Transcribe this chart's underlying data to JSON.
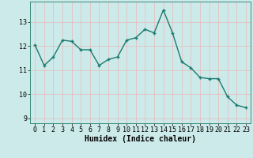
{
  "x": [
    0,
    1,
    2,
    3,
    4,
    5,
    6,
    7,
    8,
    9,
    10,
    11,
    12,
    13,
    14,
    15,
    16,
    17,
    18,
    19,
    20,
    21,
    22,
    23
  ],
  "y": [
    12.05,
    11.2,
    11.55,
    12.25,
    12.2,
    11.85,
    11.85,
    11.2,
    11.45,
    11.55,
    12.25,
    12.35,
    12.7,
    12.55,
    13.5,
    12.55,
    11.35,
    11.1,
    10.7,
    10.65,
    10.65,
    9.9,
    9.55,
    9.45
  ],
  "line_color": "#1a7a6e",
  "marker": "+",
  "marker_size": 3,
  "bg_color": "#cdeaea",
  "grid_color_major": "#b0d0d0",
  "grid_color_minor": "#ffffff",
  "xlabel": "Humidex (Indice chaleur)",
  "xlim": [
    -0.5,
    23.5
  ],
  "ylim": [
    8.8,
    13.85
  ],
  "yticks": [
    9,
    10,
    11,
    12,
    13
  ],
  "xticks": [
    0,
    1,
    2,
    3,
    4,
    5,
    6,
    7,
    8,
    9,
    10,
    11,
    12,
    13,
    14,
    15,
    16,
    17,
    18,
    19,
    20,
    21,
    22,
    23
  ],
  "xlabel_fontsize": 7,
  "tick_fontsize": 6,
  "linewidth": 1.0
}
